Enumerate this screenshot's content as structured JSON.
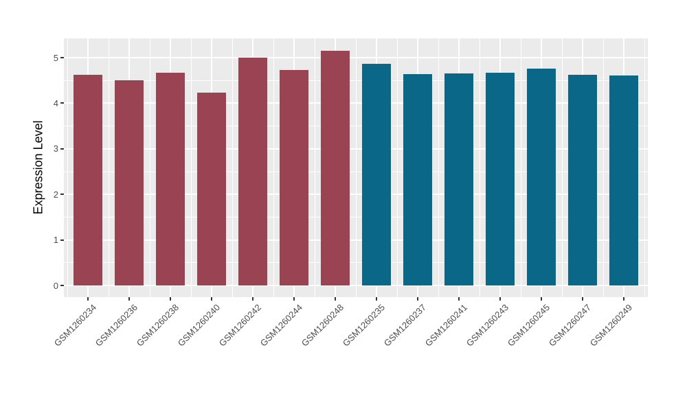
{
  "chart_data": {
    "type": "bar",
    "title": "",
    "xlabel": "",
    "ylabel": "Expression Level",
    "ylim": [
      -0.27,
      5.42
    ],
    "yticks": [
      "0",
      "1",
      "2",
      "3",
      "4",
      "5"
    ],
    "grid": true,
    "legend": false,
    "panel_bg": "#EBEBEB",
    "grid_color": "#FFFFFF",
    "categories": [
      "GSM1260234",
      "GSM1260236",
      "GSM1260238",
      "GSM1260240",
      "GSM1260242",
      "GSM1260244",
      "GSM1260248",
      "GSM1260235",
      "GSM1260237",
      "GSM1260241",
      "GSM1260243",
      "GSM1260245",
      "GSM1260247",
      "GSM1260249"
    ],
    "values": [
      4.62,
      4.5,
      4.67,
      4.23,
      5.0,
      4.73,
      5.15,
      4.87,
      4.64,
      4.65,
      4.67,
      4.76,
      4.62,
      4.61
    ],
    "bar_colors": [
      "#9A4352",
      "#9A4352",
      "#9A4352",
      "#9A4352",
      "#9A4352",
      "#9A4352",
      "#9A4352",
      "#0B6787",
      "#0B6787",
      "#0B6787",
      "#0B6787",
      "#0B6787",
      "#0B6787",
      "#0B6787"
    ],
    "group_colors": {
      "left_group": "#9A4352",
      "right_group": "#0B6787"
    }
  }
}
